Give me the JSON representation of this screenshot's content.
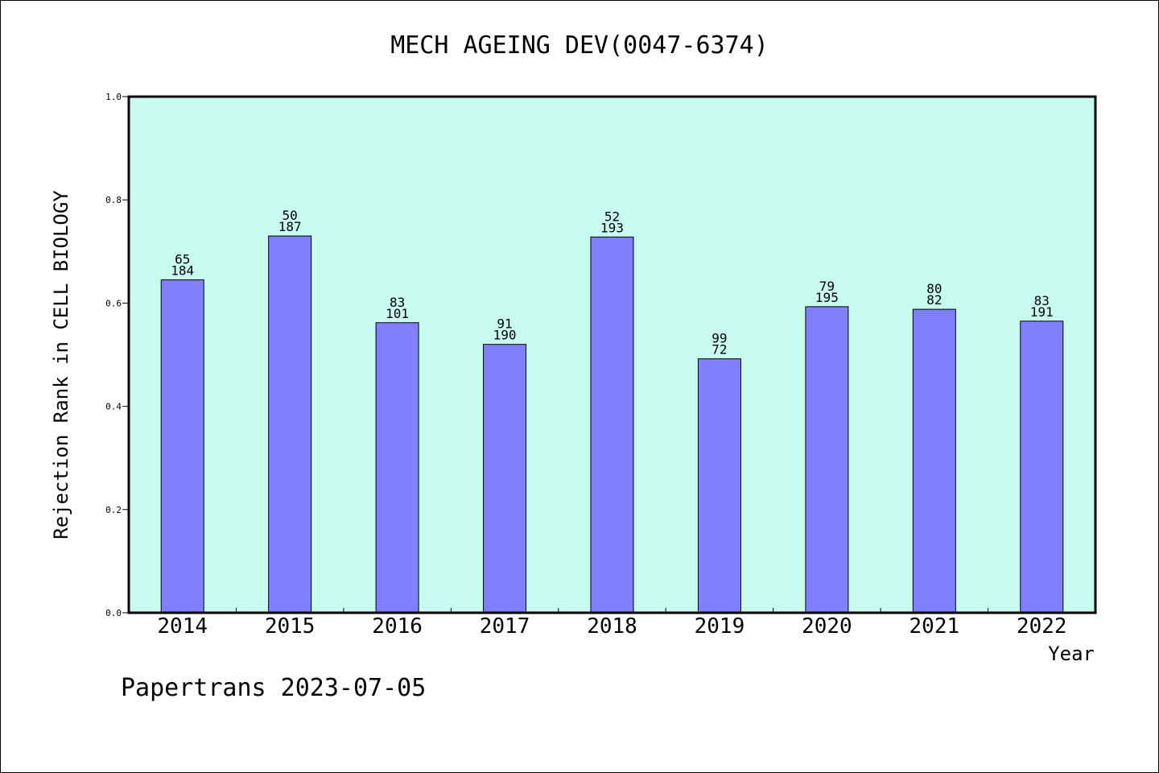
{
  "chart_data": {
    "type": "bar",
    "title": "MECH AGEING DEV(0047-6374)",
    "xlabel": "Year",
    "ylabel": "Rejection Rank in CELL BIOLOGY",
    "ylim": [
      0,
      1.0
    ],
    "yticks": [
      "0.0",
      "0.2",
      "0.4",
      "0.6",
      "0.8",
      "1.0"
    ],
    "categories": [
      "2014",
      "2015",
      "2016",
      "2017",
      "2018",
      "2019",
      "2020",
      "2021",
      "2022"
    ],
    "values": [
      0.645,
      0.73,
      0.562,
      0.52,
      0.728,
      0.492,
      0.593,
      0.588,
      0.565
    ],
    "label_top": [
      "65",
      "50",
      "83",
      "91",
      "52",
      "99",
      "79",
      "80",
      "83"
    ],
    "label_bottom": [
      "184",
      "187",
      "101",
      "190",
      "193",
      "72",
      "195",
      "82",
      "191"
    ],
    "grid": false,
    "colors": {
      "plot_bg": "#c8fcee",
      "bar": "#8080ff",
      "axis": "#000000"
    }
  },
  "footer": {
    "text": "Papertrans 2023-07-05"
  }
}
